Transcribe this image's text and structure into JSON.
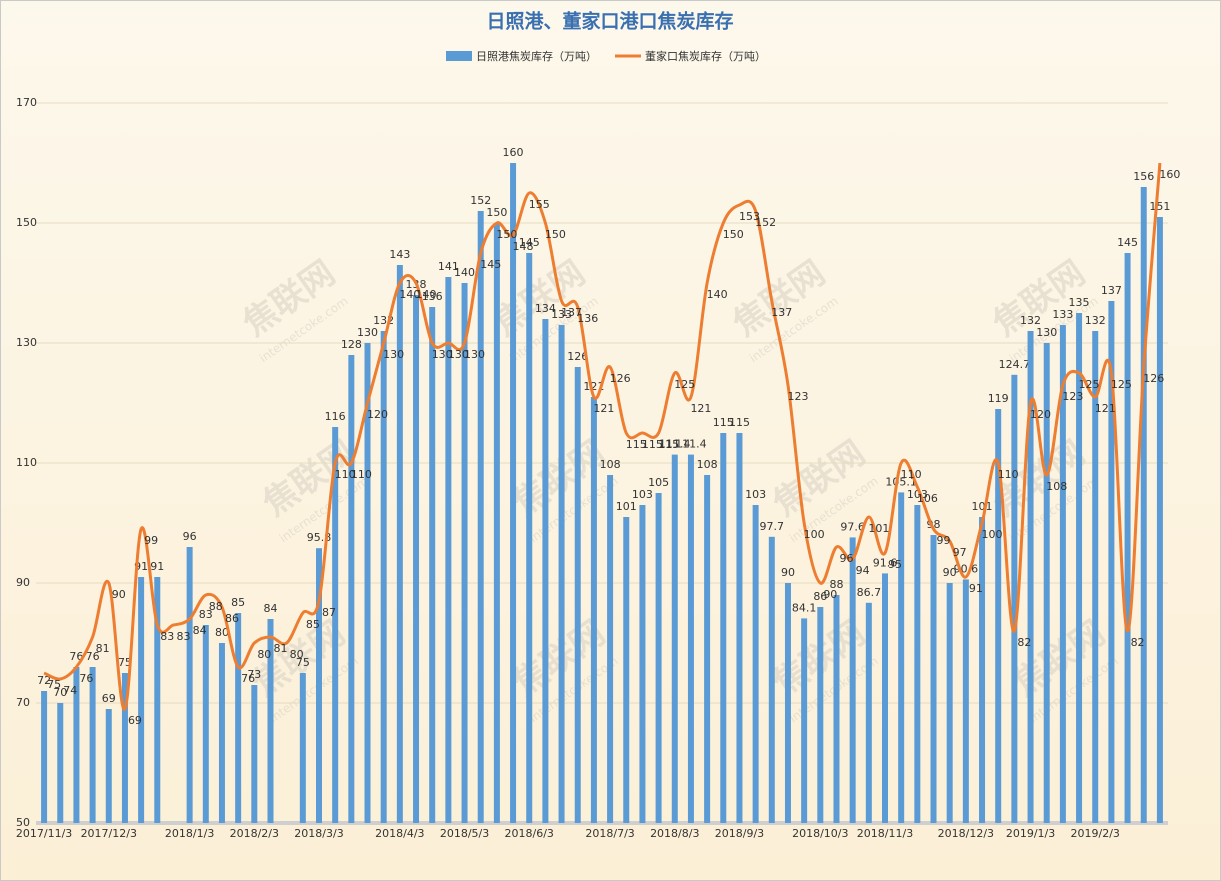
{
  "chart_data": {
    "type": "bar-line",
    "title": "日照港、董家口港口焦炭库存",
    "watermark": [
      "焦联网",
      "internetcoke.com"
    ],
    "categories": [
      "2017/11/3",
      null,
      null,
      null,
      "2017/12/3",
      null,
      null,
      null,
      null,
      "2018/1/3",
      null,
      null,
      null,
      "2018/2/3",
      null,
      null,
      null,
      "2018/3/3",
      null,
      null,
      null,
      null,
      "2018/4/3",
      null,
      null,
      null,
      "2018/5/3",
      null,
      null,
      null,
      "2018/6/3",
      null,
      null,
      null,
      null,
      "2018/7/3",
      null,
      null,
      null,
      "2018/8/3",
      null,
      null,
      null,
      "2018/9/3",
      null,
      null,
      null,
      null,
      "2018/10/3",
      null,
      null,
      null,
      "2018/11/3",
      null,
      null,
      null,
      null,
      "2018/12/3",
      null,
      null,
      null,
      "2019/1/3",
      null,
      null,
      null,
      "2019/2/3",
      null,
      null,
      null,
      null
    ],
    "series": [
      {
        "name": "日照港焦炭库存（万吨）",
        "type": "bar",
        "color": "#5b9bd5",
        "values": [
          72,
          70,
          76,
          76,
          69,
          75,
          91,
          91,
          null,
          96,
          83,
          80,
          85,
          73,
          84,
          null,
          75,
          95.8,
          116,
          128,
          130,
          132,
          143,
          138,
          136,
          141,
          140,
          152,
          150,
          160,
          145,
          134,
          133,
          126,
          121,
          108,
          101,
          103,
          105,
          111.4,
          111.4,
          108,
          115,
          115,
          103,
          97.7,
          90,
          84.1,
          86,
          88,
          97.6,
          86.7,
          91.6,
          105.1,
          103,
          98,
          90,
          90.6,
          101,
          119,
          124.7,
          132,
          130,
          133,
          135,
          132,
          137,
          145,
          156,
          151
        ]
      },
      {
        "name": "董家口焦炭库存（万吨）",
        "type": "line",
        "color": "#ed7d31",
        "values": [
          75,
          74,
          76,
          81,
          90,
          69,
          99,
          83,
          83,
          84,
          88,
          86,
          76,
          80,
          81,
          80,
          85,
          87,
          110,
          110,
          120,
          130,
          140,
          140,
          130,
          130,
          130,
          145,
          150,
          148,
          155,
          150,
          137,
          136,
          121,
          126,
          115,
          115,
          115,
          125,
          121,
          140,
          150,
          153,
          152,
          137,
          123,
          100,
          90,
          96,
          94,
          101,
          95,
          110,
          106,
          99,
          97,
          91,
          100,
          110,
          82,
          120,
          108,
          123,
          125,
          121,
          125,
          82,
          126,
          160
        ]
      }
    ],
    "ylim": [
      50,
      170
    ],
    "yticks": [
      50,
      70,
      90,
      110,
      130,
      150,
      170
    ],
    "grid": true,
    "legend": "top"
  }
}
